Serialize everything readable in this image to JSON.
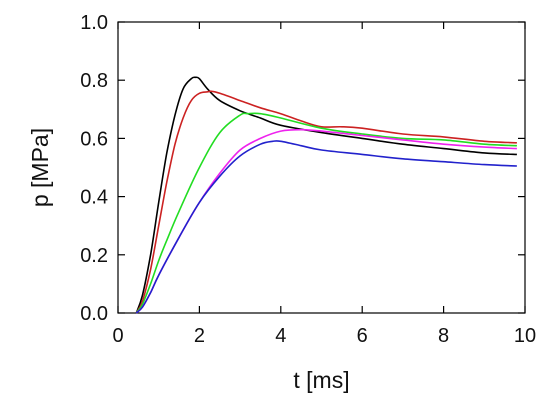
{
  "chart_data": {
    "type": "line",
    "title": "",
    "xlabel": "t [ms]",
    "ylabel": "p [MPa]",
    "xlim": [
      0,
      10
    ],
    "ylim": [
      0,
      1.0
    ],
    "xticks": [
      0,
      2,
      4,
      6,
      8,
      10
    ],
    "yticks": [
      0.0,
      0.2,
      0.4,
      0.6,
      0.8,
      1.0
    ],
    "xtick_labels": [
      "0",
      "2",
      "4",
      "6",
      "8",
      "10"
    ],
    "ytick_labels": [
      "0.0",
      "0.2",
      "0.4",
      "0.6",
      "0.8",
      "1.0"
    ],
    "grid": false,
    "legend": false,
    "series": [
      {
        "color": "#000000",
        "x": [
          0.45,
          0.6,
          0.8,
          1.0,
          1.2,
          1.4,
          1.6,
          1.8,
          1.9,
          2.0,
          2.2,
          2.5,
          3.0,
          3.5,
          4.0,
          5.0,
          6.0,
          7.0,
          8.0,
          9.0,
          9.8
        ],
        "y": [
          0.0,
          0.06,
          0.2,
          0.38,
          0.55,
          0.68,
          0.77,
          0.805,
          0.81,
          0.805,
          0.77,
          0.73,
          0.695,
          0.67,
          0.645,
          0.62,
          0.6,
          0.58,
          0.565,
          0.55,
          0.545
        ]
      },
      {
        "color": "#cc2222",
        "x": [
          0.45,
          0.6,
          0.8,
          1.0,
          1.2,
          1.4,
          1.6,
          1.8,
          2.0,
          2.2,
          2.3,
          2.5,
          3.0,
          3.5,
          4.0,
          4.5,
          5.0,
          5.5,
          6.0,
          7.0,
          8.0,
          9.0,
          9.8
        ],
        "y": [
          0.0,
          0.04,
          0.15,
          0.3,
          0.45,
          0.58,
          0.67,
          0.73,
          0.755,
          0.76,
          0.762,
          0.755,
          0.73,
          0.705,
          0.685,
          0.66,
          0.64,
          0.64,
          0.635,
          0.615,
          0.605,
          0.59,
          0.585
        ]
      },
      {
        "color": "#22dd22",
        "x": [
          0.45,
          0.6,
          0.8,
          1.0,
          1.2,
          1.5,
          2.0,
          2.5,
          3.0,
          3.2,
          3.5,
          4.0,
          5.0,
          6.0,
          7.0,
          8.0,
          9.0,
          9.8
        ],
        "y": [
          0.0,
          0.03,
          0.1,
          0.18,
          0.25,
          0.35,
          0.5,
          0.62,
          0.68,
          0.685,
          0.685,
          0.67,
          0.635,
          0.615,
          0.6,
          0.595,
          0.58,
          0.575
        ]
      },
      {
        "color": "#ee22ee",
        "x": [
          0.45,
          0.6,
          0.8,
          1.0,
          1.5,
          2.0,
          2.5,
          3.0,
          3.5,
          4.0,
          4.5,
          5.0,
          6.0,
          7.0,
          8.0,
          9.0,
          9.8
        ],
        "y": [
          0.0,
          0.02,
          0.07,
          0.13,
          0.26,
          0.38,
          0.48,
          0.56,
          0.6,
          0.625,
          0.63,
          0.625,
          0.61,
          0.595,
          0.58,
          0.57,
          0.565
        ]
      },
      {
        "color": "#2222cc",
        "x": [
          0.45,
          0.6,
          0.8,
          1.0,
          1.5,
          2.0,
          2.5,
          3.0,
          3.5,
          3.8,
          4.0,
          4.5,
          5.0,
          6.0,
          7.0,
          8.0,
          9.0,
          9.8
        ],
        "y": [
          0.0,
          0.02,
          0.07,
          0.13,
          0.26,
          0.38,
          0.47,
          0.54,
          0.58,
          0.59,
          0.59,
          0.575,
          0.56,
          0.545,
          0.53,
          0.52,
          0.51,
          0.505
        ]
      }
    ]
  }
}
